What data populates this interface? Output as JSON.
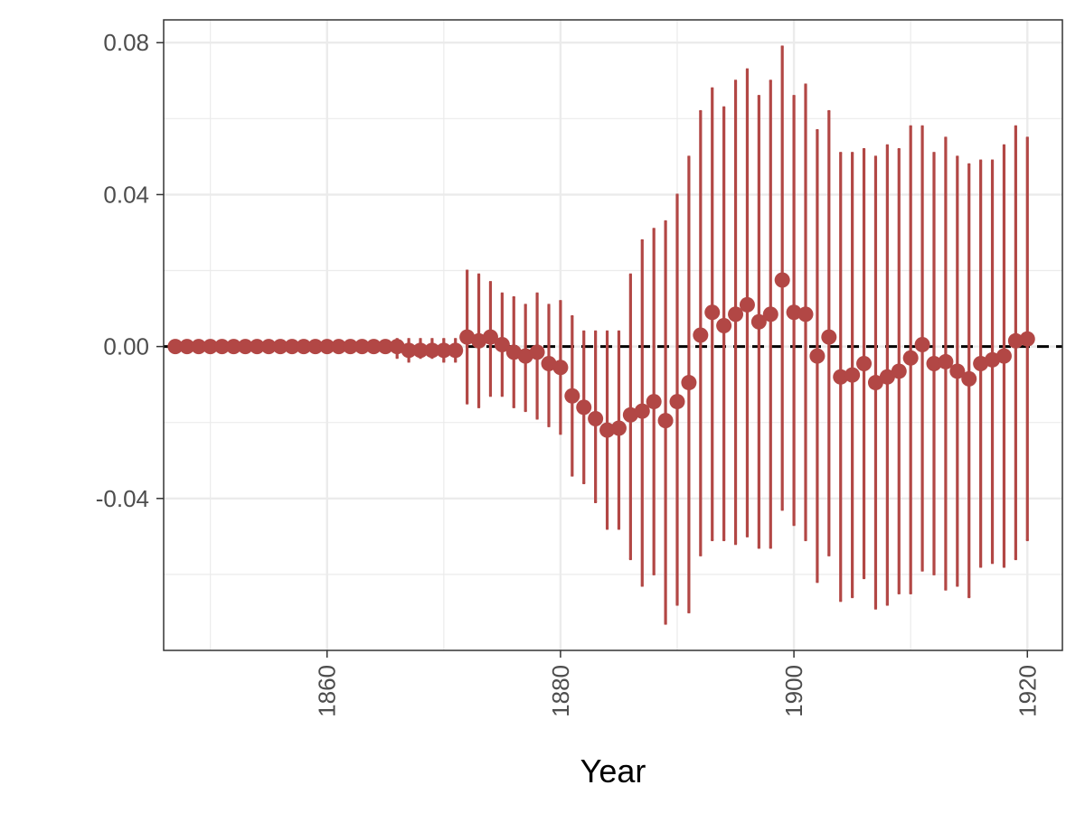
{
  "chart_data": {
    "type": "scatter",
    "title": "",
    "xlabel": "Year",
    "ylabel": "",
    "xlim": [
      1846,
      1923
    ],
    "ylim": [
      -0.08,
      0.086
    ],
    "grid": true,
    "legend": "none",
    "x_ticks": [
      1860,
      1880,
      1900,
      1920
    ],
    "x_tick_labels": [
      "1860",
      "1880",
      "1900",
      "1920"
    ],
    "y_ticks": [
      -0.04,
      0.0,
      0.04,
      0.08
    ],
    "y_tick_labels": [
      "-0.04",
      "0.00",
      "0.04",
      "0.08"
    ],
    "reference_line": {
      "y": 0,
      "style": "dashed",
      "color": "#000000"
    },
    "colors": {
      "point": "#b24745",
      "errorbar": "#b24745"
    },
    "points": [
      {
        "x": 1847,
        "y": 0.0,
        "lo": 0.0,
        "hi": 0.0
      },
      {
        "x": 1848,
        "y": 0.0,
        "lo": 0.0,
        "hi": 0.0
      },
      {
        "x": 1849,
        "y": 0.0,
        "lo": 0.0,
        "hi": 0.0
      },
      {
        "x": 1850,
        "y": 0.0,
        "lo": 0.0,
        "hi": 0.0
      },
      {
        "x": 1851,
        "y": 0.0,
        "lo": 0.0,
        "hi": 0.0
      },
      {
        "x": 1852,
        "y": 0.0,
        "lo": 0.0,
        "hi": 0.0
      },
      {
        "x": 1853,
        "y": 0.0,
        "lo": 0.0,
        "hi": 0.0
      },
      {
        "x": 1854,
        "y": 0.0,
        "lo": 0.0,
        "hi": 0.0
      },
      {
        "x": 1855,
        "y": 0.0,
        "lo": 0.0,
        "hi": 0.0
      },
      {
        "x": 1856,
        "y": 0.0,
        "lo": 0.0,
        "hi": 0.0
      },
      {
        "x": 1857,
        "y": 0.0,
        "lo": 0.0,
        "hi": 0.0
      },
      {
        "x": 1858,
        "y": 0.0,
        "lo": 0.0,
        "hi": 0.0
      },
      {
        "x": 1859,
        "y": 0.0,
        "lo": 0.0,
        "hi": 0.0
      },
      {
        "x": 1860,
        "y": 0.0,
        "lo": 0.0,
        "hi": 0.0
      },
      {
        "x": 1861,
        "y": 0.0,
        "lo": 0.0,
        "hi": 0.0
      },
      {
        "x": 1862,
        "y": 0.0,
        "lo": -0.001,
        "hi": 0.001
      },
      {
        "x": 1863,
        "y": 0.0,
        "lo": -0.001,
        "hi": 0.001
      },
      {
        "x": 1864,
        "y": 0.0,
        "lo": -0.001,
        "hi": 0.001
      },
      {
        "x": 1865,
        "y": 0.0,
        "lo": -0.001,
        "hi": 0.001
      },
      {
        "x": 1866,
        "y": 0.0,
        "lo": -0.003,
        "hi": 0.002
      },
      {
        "x": 1867,
        "y": -0.001,
        "lo": -0.004,
        "hi": 0.002
      },
      {
        "x": 1868,
        "y": -0.001,
        "lo": -0.003,
        "hi": 0.002
      },
      {
        "x": 1869,
        "y": -0.001,
        "lo": -0.003,
        "hi": 0.002
      },
      {
        "x": 1870,
        "y": -0.001,
        "lo": -0.004,
        "hi": 0.002
      },
      {
        "x": 1871,
        "y": -0.001,
        "lo": -0.004,
        "hi": 0.002
      },
      {
        "x": 1872,
        "y": 0.0025,
        "lo": -0.015,
        "hi": 0.02
      },
      {
        "x": 1873,
        "y": 0.0015,
        "lo": -0.016,
        "hi": 0.019
      },
      {
        "x": 1874,
        "y": 0.0025,
        "lo": -0.013,
        "hi": 0.017
      },
      {
        "x": 1875,
        "y": 0.0005,
        "lo": -0.013,
        "hi": 0.014
      },
      {
        "x": 1876,
        "y": -0.0015,
        "lo": -0.016,
        "hi": 0.013
      },
      {
        "x": 1877,
        "y": -0.0025,
        "lo": -0.017,
        "hi": 0.011
      },
      {
        "x": 1878,
        "y": -0.0015,
        "lo": -0.019,
        "hi": 0.014
      },
      {
        "x": 1879,
        "y": -0.0045,
        "lo": -0.021,
        "hi": 0.011
      },
      {
        "x": 1880,
        "y": -0.0055,
        "lo": -0.023,
        "hi": 0.012
      },
      {
        "x": 1881,
        "y": -0.013,
        "lo": -0.034,
        "hi": 0.008
      },
      {
        "x": 1882,
        "y": -0.016,
        "lo": -0.036,
        "hi": 0.004
      },
      {
        "x": 1883,
        "y": -0.019,
        "lo": -0.041,
        "hi": 0.004
      },
      {
        "x": 1884,
        "y": -0.022,
        "lo": -0.048,
        "hi": 0.004
      },
      {
        "x": 1885,
        "y": -0.0215,
        "lo": -0.048,
        "hi": 0.004
      },
      {
        "x": 1886,
        "y": -0.018,
        "lo": -0.056,
        "hi": 0.019
      },
      {
        "x": 1887,
        "y": -0.017,
        "lo": -0.063,
        "hi": 0.028
      },
      {
        "x": 1888,
        "y": -0.0145,
        "lo": -0.06,
        "hi": 0.031
      },
      {
        "x": 1889,
        "y": -0.0195,
        "lo": -0.073,
        "hi": 0.033
      },
      {
        "x": 1890,
        "y": -0.0145,
        "lo": -0.068,
        "hi": 0.04
      },
      {
        "x": 1891,
        "y": -0.0095,
        "lo": -0.07,
        "hi": 0.05
      },
      {
        "x": 1892,
        "y": 0.003,
        "lo": -0.055,
        "hi": 0.062
      },
      {
        "x": 1893,
        "y": 0.009,
        "lo": -0.051,
        "hi": 0.068
      },
      {
        "x": 1894,
        "y": 0.0055,
        "lo": -0.051,
        "hi": 0.063
      },
      {
        "x": 1895,
        "y": 0.0085,
        "lo": -0.052,
        "hi": 0.07
      },
      {
        "x": 1896,
        "y": 0.011,
        "lo": -0.05,
        "hi": 0.073
      },
      {
        "x": 1897,
        "y": 0.0065,
        "lo": -0.053,
        "hi": 0.066
      },
      {
        "x": 1898,
        "y": 0.0085,
        "lo": -0.053,
        "hi": 0.07
      },
      {
        "x": 1899,
        "y": 0.0175,
        "lo": -0.043,
        "hi": 0.079
      },
      {
        "x": 1900,
        "y": 0.009,
        "lo": -0.047,
        "hi": 0.066
      },
      {
        "x": 1901,
        "y": 0.0085,
        "lo": -0.051,
        "hi": 0.069
      },
      {
        "x": 1902,
        "y": -0.0025,
        "lo": -0.062,
        "hi": 0.057
      },
      {
        "x": 1903,
        "y": 0.0025,
        "lo": -0.055,
        "hi": 0.062
      },
      {
        "x": 1904,
        "y": -0.008,
        "lo": -0.067,
        "hi": 0.051
      },
      {
        "x": 1905,
        "y": -0.0075,
        "lo": -0.066,
        "hi": 0.051
      },
      {
        "x": 1906,
        "y": -0.0045,
        "lo": -0.061,
        "hi": 0.052
      },
      {
        "x": 1907,
        "y": -0.0095,
        "lo": -0.069,
        "hi": 0.05
      },
      {
        "x": 1908,
        "y": -0.008,
        "lo": -0.068,
        "hi": 0.053
      },
      {
        "x": 1909,
        "y": -0.0065,
        "lo": -0.065,
        "hi": 0.052
      },
      {
        "x": 1910,
        "y": -0.003,
        "lo": -0.065,
        "hi": 0.058
      },
      {
        "x": 1911,
        "y": 0.0005,
        "lo": -0.059,
        "hi": 0.058
      },
      {
        "x": 1912,
        "y": -0.0045,
        "lo": -0.06,
        "hi": 0.051
      },
      {
        "x": 1913,
        "y": -0.004,
        "lo": -0.064,
        "hi": 0.055
      },
      {
        "x": 1914,
        "y": -0.0065,
        "lo": -0.063,
        "hi": 0.05
      },
      {
        "x": 1915,
        "y": -0.0085,
        "lo": -0.066,
        "hi": 0.048
      },
      {
        "x": 1916,
        "y": -0.0045,
        "lo": -0.058,
        "hi": 0.049
      },
      {
        "x": 1917,
        "y": -0.0035,
        "lo": -0.057,
        "hi": 0.049
      },
      {
        "x": 1918,
        "y": -0.0025,
        "lo": -0.058,
        "hi": 0.053
      },
      {
        "x": 1919,
        "y": 0.0015,
        "lo": -0.056,
        "hi": 0.058
      },
      {
        "x": 1920,
        "y": 0.002,
        "lo": -0.051,
        "hi": 0.055
      }
    ]
  }
}
